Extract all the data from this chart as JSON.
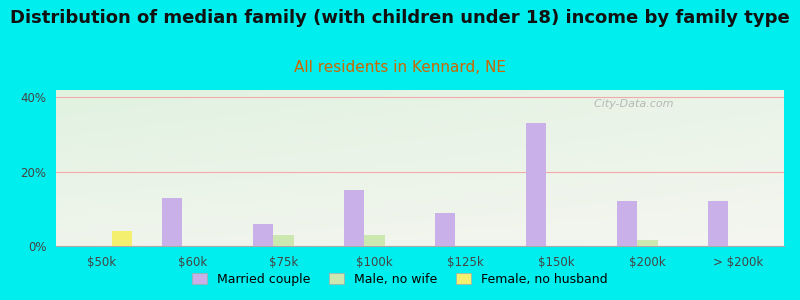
{
  "title": "Distribution of median family (with children under 18) income by family type",
  "subtitle": "All residents in Kennard, NE",
  "categories": [
    "$50k",
    "$60k",
    "$75k",
    "$100k",
    "$125k",
    "$150k",
    "$200k",
    "> $200k"
  ],
  "series": [
    {
      "name": "Married couple",
      "color": "#c9b0e8",
      "values": [
        0,
        13,
        6,
        15,
        9,
        33,
        12,
        12
      ]
    },
    {
      "name": "Male, no wife",
      "color": "#cce8b0",
      "values": [
        0,
        0,
        3,
        3,
        0,
        0,
        1.5,
        0
      ]
    },
    {
      "name": "Female, no husband",
      "color": "#f5ef70",
      "values": [
        4,
        0,
        0,
        0,
        0,
        0,
        0,
        0
      ]
    }
  ],
  "ylim": [
    0,
    42
  ],
  "yticks": [
    0,
    20,
    40
  ],
  "ytick_labels": [
    "0%",
    "20%",
    "40%"
  ],
  "background_color": "#00eeee",
  "title_fontsize": 13,
  "subtitle_fontsize": 11,
  "subtitle_color": "#cc6600",
  "title_color": "#111111",
  "watermark": "  City-Data.com",
  "bar_width": 0.22,
  "grid_color": "#f5aaaa",
  "grid_linewidth": 0.8,
  "tick_color": "#444444",
  "tick_fontsize": 8.5
}
